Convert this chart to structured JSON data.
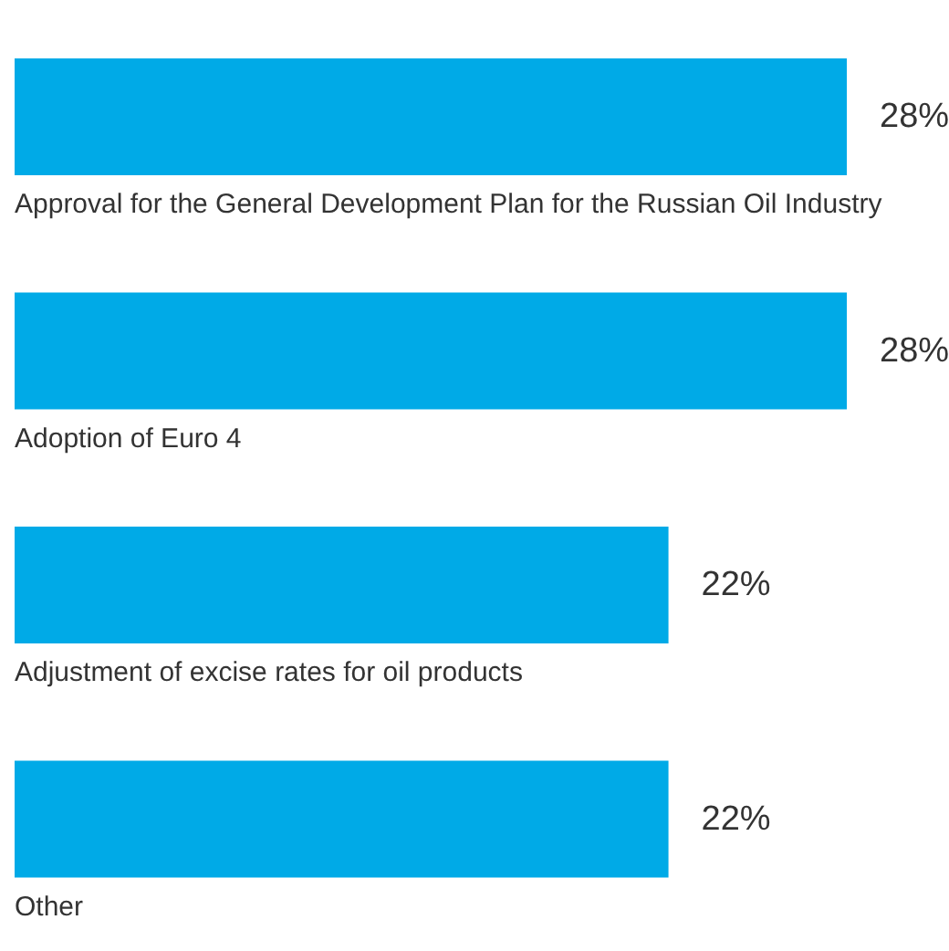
{
  "chart_data": {
    "type": "bar",
    "orientation": "horizontal",
    "categories": [
      "Approval for the General Development Plan for the Russian Oil Industry",
      "Adoption of Euro 4",
      "Adjustment of excise rates for oil products",
      "Other"
    ],
    "values": [
      28,
      28,
      22,
      22
    ],
    "value_labels": [
      "28%",
      "28%",
      "22%",
      "22%"
    ],
    "color": "#00aae7",
    "grid": false,
    "legend": false
  }
}
